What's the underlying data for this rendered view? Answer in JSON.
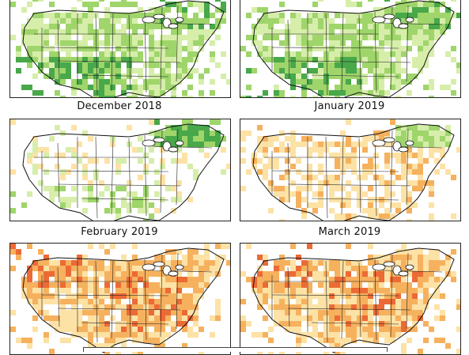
{
  "panels": [
    {
      "id": "p0",
      "caption": "",
      "palette": "wet",
      "intensity": 0.75
    },
    {
      "id": "p1",
      "caption": "",
      "palette": "wet",
      "intensity": 0.7
    },
    {
      "id": "p2",
      "caption": "December 2018",
      "palette": "mixed-wet",
      "intensity": 0.35
    },
    {
      "id": "p3",
      "caption": "January 2019",
      "palette": "mixed-dry",
      "intensity": 0.35
    },
    {
      "id": "p4",
      "caption": "February 2019",
      "palette": "dry",
      "intensity": 0.85
    },
    {
      "id": "p5",
      "caption": "March 2019",
      "palette": "dry",
      "intensity": 0.8
    }
  ],
  "colors": {
    "wet_light": "#d6eeaa",
    "wet_mid": "#9fd56b",
    "wet_dark": "#48a84a",
    "dry_light": "#fde2a6",
    "dry_mid": "#f6b15e",
    "dry_dark": "#ec6a35",
    "border": "#222222"
  },
  "captions": {
    "december_2018": "December 2018",
    "january_2019": "January 2019",
    "february_2019": "February 2019",
    "march_2019": "March 2019"
  }
}
